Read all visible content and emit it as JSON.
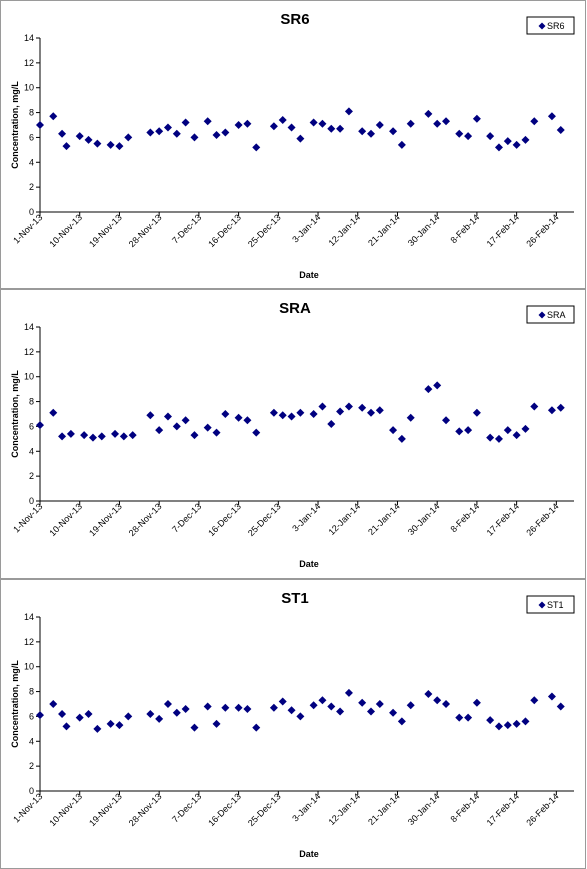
{
  "chart_data": [
    {
      "type": "scatter",
      "title": "SR6",
      "xlabel": "Date",
      "ylabel": "Concentration, mg/L",
      "ylim": [
        0,
        14
      ],
      "yticks": [
        "0",
        "2",
        "4",
        "6",
        "8",
        "10",
        "12",
        "14"
      ],
      "xlim": [
        "2013-11-01",
        "2014-03-02"
      ],
      "xticks": [
        {
          "label": "1-Nov-13",
          "date": "2013-11-01"
        },
        {
          "label": "10-Nov-13",
          "date": "2013-11-10"
        },
        {
          "label": "19-Nov-13",
          "date": "2013-11-19"
        },
        {
          "label": "28-Nov-13",
          "date": "2013-11-28"
        },
        {
          "label": "7-Dec-13",
          "date": "2013-12-07"
        },
        {
          "label": "16-Dec-13",
          "date": "2013-12-16"
        },
        {
          "label": "25-Dec-13",
          "date": "2013-12-25"
        },
        {
          "label": "3-Jan-14",
          "date": "2014-01-03"
        },
        {
          "label": "12-Jan-14",
          "date": "2014-01-12"
        },
        {
          "label": "21-Jan-14",
          "date": "2014-01-21"
        },
        {
          "label": "30-Jan-14",
          "date": "2014-01-30"
        },
        {
          "label": "8-Feb-14",
          "date": "2014-02-08"
        },
        {
          "label": "17-Feb-14",
          "date": "2014-02-17"
        },
        {
          "label": "26-Feb-14",
          "date": "2014-02-26"
        }
      ],
      "legend": "top-right",
      "grid": false,
      "color": "#000080",
      "series": [
        {
          "name": "SR6",
          "points": [
            [
              "2013-11-01",
              7.0
            ],
            [
              "2013-11-04",
              7.7
            ],
            [
              "2013-11-06",
              6.3
            ],
            [
              "2013-11-07",
              5.3
            ],
            [
              "2013-11-10",
              6.1
            ],
            [
              "2013-11-12",
              5.8
            ],
            [
              "2013-11-14",
              5.5
            ],
            [
              "2013-11-17",
              5.4
            ],
            [
              "2013-11-19",
              5.3
            ],
            [
              "2013-11-21",
              6.0
            ],
            [
              "2013-11-26",
              6.4
            ],
            [
              "2013-11-28",
              6.5
            ],
            [
              "2013-11-30",
              6.8
            ],
            [
              "2013-12-02",
              6.3
            ],
            [
              "2013-12-04",
              7.2
            ],
            [
              "2013-12-06",
              6.0
            ],
            [
              "2013-12-09",
              7.3
            ],
            [
              "2013-12-11",
              6.2
            ],
            [
              "2013-12-13",
              6.4
            ],
            [
              "2013-12-16",
              7.0
            ],
            [
              "2013-12-18",
              7.1
            ],
            [
              "2013-12-20",
              5.2
            ],
            [
              "2013-12-24",
              6.9
            ],
            [
              "2013-12-26",
              7.4
            ],
            [
              "2013-12-28",
              6.8
            ],
            [
              "2013-12-30",
              5.9
            ],
            [
              "2014-01-02",
              7.2
            ],
            [
              "2014-01-04",
              7.1
            ],
            [
              "2014-01-06",
              6.7
            ],
            [
              "2014-01-08",
              6.7
            ],
            [
              "2014-01-10",
              8.1
            ],
            [
              "2014-01-13",
              6.5
            ],
            [
              "2014-01-15",
              6.3
            ],
            [
              "2014-01-17",
              7.0
            ],
            [
              "2014-01-20",
              6.5
            ],
            [
              "2014-01-22",
              5.4
            ],
            [
              "2014-01-24",
              7.1
            ],
            [
              "2014-01-28",
              7.9
            ],
            [
              "2014-01-30",
              7.1
            ],
            [
              "2014-02-01",
              7.3
            ],
            [
              "2014-02-04",
              6.3
            ],
            [
              "2014-02-06",
              6.1
            ],
            [
              "2014-02-08",
              7.5
            ],
            [
              "2014-02-11",
              6.1
            ],
            [
              "2014-02-13",
              5.2
            ],
            [
              "2014-02-15",
              5.7
            ],
            [
              "2014-02-17",
              5.4
            ],
            [
              "2014-02-19",
              5.8
            ],
            [
              "2014-02-21",
              7.3
            ],
            [
              "2014-02-25",
              7.7
            ],
            [
              "2014-02-27",
              6.6
            ]
          ]
        }
      ]
    },
    {
      "type": "scatter",
      "title": "SRA",
      "xlabel": "Date",
      "ylabel": "Concentration, mg/L",
      "ylim": [
        0,
        14
      ],
      "yticks": [
        "0",
        "2",
        "4",
        "6",
        "8",
        "10",
        "12",
        "14"
      ],
      "xlim": [
        "2013-11-01",
        "2014-03-02"
      ],
      "xticks": [
        {
          "label": "1-Nov-13",
          "date": "2013-11-01"
        },
        {
          "label": "10-Nov-13",
          "date": "2013-11-10"
        },
        {
          "label": "19-Nov-13",
          "date": "2013-11-19"
        },
        {
          "label": "28-Nov-13",
          "date": "2013-11-28"
        },
        {
          "label": "7-Dec-13",
          "date": "2013-12-07"
        },
        {
          "label": "16-Dec-13",
          "date": "2013-12-16"
        },
        {
          "label": "25-Dec-13",
          "date": "2013-12-25"
        },
        {
          "label": "3-Jan-14",
          "date": "2014-01-03"
        },
        {
          "label": "12-Jan-14",
          "date": "2014-01-12"
        },
        {
          "label": "21-Jan-14",
          "date": "2014-01-21"
        },
        {
          "label": "30-Jan-14",
          "date": "2014-01-30"
        },
        {
          "label": "8-Feb-14",
          "date": "2014-02-08"
        },
        {
          "label": "17-Feb-14",
          "date": "2014-02-17"
        },
        {
          "label": "26-Feb-14",
          "date": "2014-02-26"
        }
      ],
      "legend": "top-right",
      "grid": false,
      "color": "#000080",
      "series": [
        {
          "name": "SRA",
          "points": [
            [
              "2013-11-01",
              6.1
            ],
            [
              "2013-11-04",
              7.1
            ],
            [
              "2013-11-06",
              5.2
            ],
            [
              "2013-11-08",
              5.4
            ],
            [
              "2013-11-11",
              5.3
            ],
            [
              "2013-11-13",
              5.1
            ],
            [
              "2013-11-15",
              5.2
            ],
            [
              "2013-11-18",
              5.4
            ],
            [
              "2013-11-20",
              5.2
            ],
            [
              "2013-11-22",
              5.3
            ],
            [
              "2013-11-26",
              6.9
            ],
            [
              "2013-11-28",
              5.7
            ],
            [
              "2013-11-30",
              6.8
            ],
            [
              "2013-12-02",
              6.0
            ],
            [
              "2013-12-04",
              6.5
            ],
            [
              "2013-12-06",
              5.3
            ],
            [
              "2013-12-09",
              5.9
            ],
            [
              "2013-12-11",
              5.5
            ],
            [
              "2013-12-13",
              7.0
            ],
            [
              "2013-12-16",
              6.7
            ],
            [
              "2013-12-18",
              6.5
            ],
            [
              "2013-12-20",
              5.5
            ],
            [
              "2013-12-24",
              7.1
            ],
            [
              "2013-12-26",
              6.9
            ],
            [
              "2013-12-28",
              6.8
            ],
            [
              "2013-12-30",
              7.1
            ],
            [
              "2014-01-02",
              7.0
            ],
            [
              "2014-01-04",
              7.6
            ],
            [
              "2014-01-06",
              6.2
            ],
            [
              "2014-01-08",
              7.2
            ],
            [
              "2014-01-10",
              7.6
            ],
            [
              "2014-01-13",
              7.5
            ],
            [
              "2014-01-15",
              7.1
            ],
            [
              "2014-01-17",
              7.3
            ],
            [
              "2014-01-20",
              5.7
            ],
            [
              "2014-01-22",
              5.0
            ],
            [
              "2014-01-24",
              6.7
            ],
            [
              "2014-01-28",
              9.0
            ],
            [
              "2014-01-30",
              9.3
            ],
            [
              "2014-02-01",
              6.5
            ],
            [
              "2014-02-04",
              5.6
            ],
            [
              "2014-02-06",
              5.7
            ],
            [
              "2014-02-08",
              7.1
            ],
            [
              "2014-02-11",
              5.1
            ],
            [
              "2014-02-13",
              5.0
            ],
            [
              "2014-02-15",
              5.7
            ],
            [
              "2014-02-17",
              5.3
            ],
            [
              "2014-02-19",
              5.8
            ],
            [
              "2014-02-21",
              7.6
            ],
            [
              "2014-02-25",
              7.3
            ],
            [
              "2014-02-27",
              7.5
            ]
          ]
        }
      ]
    },
    {
      "type": "scatter",
      "title": "ST1",
      "xlabel": "Date",
      "ylabel": "Concentration, mg/L",
      "ylim": [
        0,
        14
      ],
      "yticks": [
        "0",
        "2",
        "4",
        "6",
        "8",
        "10",
        "12",
        "14"
      ],
      "xlim": [
        "2013-11-01",
        "2014-03-02"
      ],
      "xticks": [
        {
          "label": "1-Nov-13",
          "date": "2013-11-01"
        },
        {
          "label": "10-Nov-13",
          "date": "2013-11-10"
        },
        {
          "label": "19-Nov-13",
          "date": "2013-11-19"
        },
        {
          "label": "28-Nov-13",
          "date": "2013-11-28"
        },
        {
          "label": "7-Dec-13",
          "date": "2013-12-07"
        },
        {
          "label": "16-Dec-13",
          "date": "2013-12-16"
        },
        {
          "label": "25-Dec-13",
          "date": "2013-12-25"
        },
        {
          "label": "3-Jan-14",
          "date": "2014-01-03"
        },
        {
          "label": "12-Jan-14",
          "date": "2014-01-12"
        },
        {
          "label": "21-Jan-14",
          "date": "2014-01-21"
        },
        {
          "label": "30-Jan-14",
          "date": "2014-01-30"
        },
        {
          "label": "8-Feb-14",
          "date": "2014-02-08"
        },
        {
          "label": "17-Feb-14",
          "date": "2014-02-17"
        },
        {
          "label": "26-Feb-14",
          "date": "2014-02-26"
        }
      ],
      "legend": "top-right",
      "grid": false,
      "color": "#000080",
      "series": [
        {
          "name": "ST1",
          "points": [
            [
              "2013-11-01",
              6.1
            ],
            [
              "2013-11-04",
              7.0
            ],
            [
              "2013-11-06",
              6.2
            ],
            [
              "2013-11-07",
              5.2
            ],
            [
              "2013-11-10",
              5.9
            ],
            [
              "2013-11-12",
              6.2
            ],
            [
              "2013-11-14",
              5.0
            ],
            [
              "2013-11-17",
              5.4
            ],
            [
              "2013-11-19",
              5.3
            ],
            [
              "2013-11-21",
              6.0
            ],
            [
              "2013-11-26",
              6.2
            ],
            [
              "2013-11-28",
              5.8
            ],
            [
              "2013-11-30",
              7.0
            ],
            [
              "2013-12-02",
              6.3
            ],
            [
              "2013-12-04",
              6.6
            ],
            [
              "2013-12-06",
              5.1
            ],
            [
              "2013-12-09",
              6.8
            ],
            [
              "2013-12-11",
              5.4
            ],
            [
              "2013-12-13",
              6.7
            ],
            [
              "2013-12-16",
              6.7
            ],
            [
              "2013-12-18",
              6.6
            ],
            [
              "2013-12-20",
              5.1
            ],
            [
              "2013-12-24",
              6.7
            ],
            [
              "2013-12-26",
              7.2
            ],
            [
              "2013-12-28",
              6.5
            ],
            [
              "2013-12-30",
              6.0
            ],
            [
              "2014-01-02",
              6.9
            ],
            [
              "2014-01-04",
              7.3
            ],
            [
              "2014-01-06",
              6.8
            ],
            [
              "2014-01-08",
              6.4
            ],
            [
              "2014-01-10",
              7.9
            ],
            [
              "2014-01-13",
              7.1
            ],
            [
              "2014-01-15",
              6.4
            ],
            [
              "2014-01-17",
              7.0
            ],
            [
              "2014-01-20",
              6.3
            ],
            [
              "2014-01-22",
              5.6
            ],
            [
              "2014-01-24",
              6.9
            ],
            [
              "2014-01-28",
              7.8
            ],
            [
              "2014-01-30",
              7.3
            ],
            [
              "2014-02-01",
              7.0
            ],
            [
              "2014-02-04",
              5.9
            ],
            [
              "2014-02-06",
              5.9
            ],
            [
              "2014-02-08",
              7.1
            ],
            [
              "2014-02-11",
              5.7
            ],
            [
              "2014-02-13",
              5.2
            ],
            [
              "2014-02-15",
              5.3
            ],
            [
              "2014-02-17",
              5.4
            ],
            [
              "2014-02-19",
              5.6
            ],
            [
              "2014-02-21",
              7.3
            ],
            [
              "2014-02-25",
              7.6
            ],
            [
              "2014-02-27",
              6.8
            ]
          ]
        }
      ]
    }
  ]
}
